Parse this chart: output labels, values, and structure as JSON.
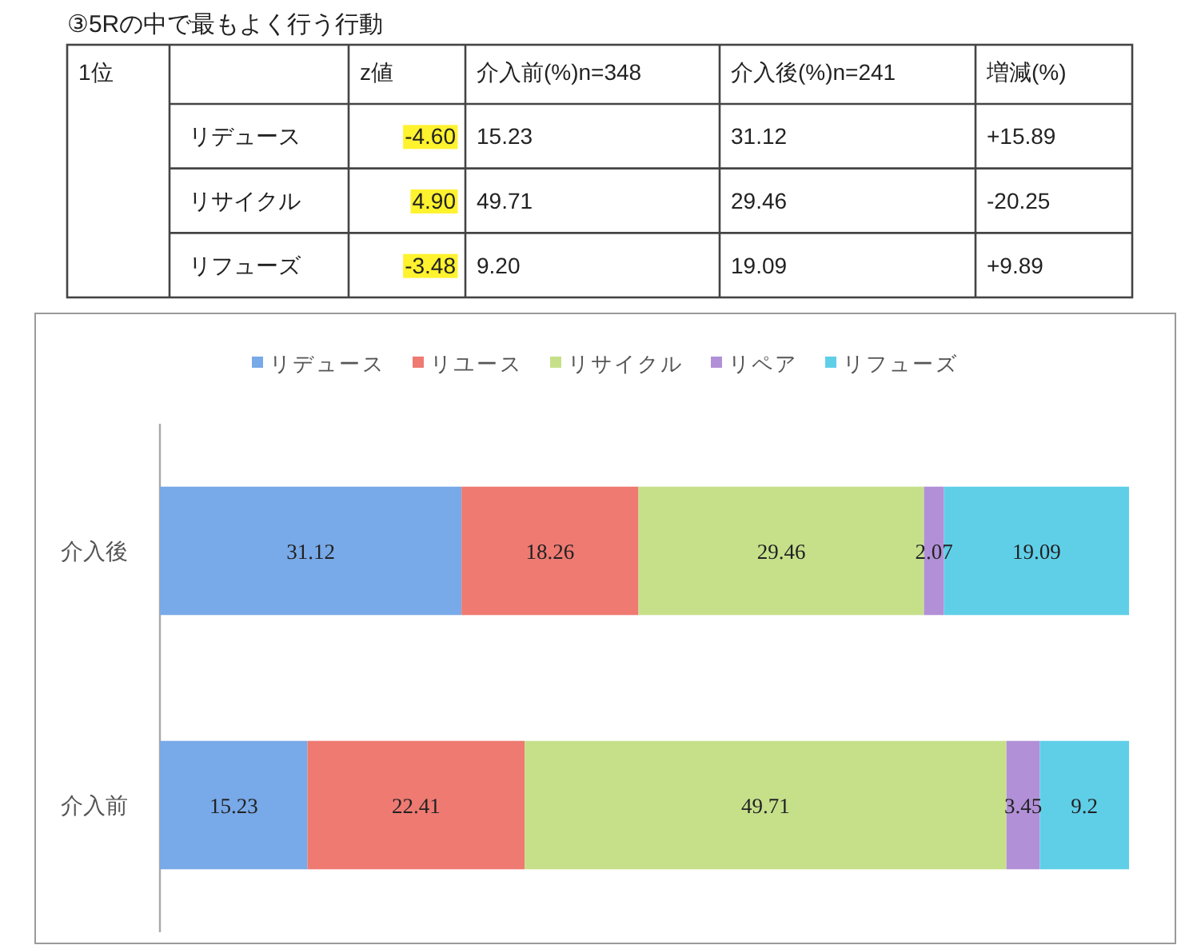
{
  "chart_data": [
    {
      "type": "other",
      "title": "③5Rの中で最もよく行う行動",
      "ylabel": "1位",
      "categories": [
        "z値",
        "介入前(%)n=348",
        "介入後(%)n=241",
        "増減(%)"
      ],
      "y_categories": [
        "リデュース",
        "リサイクル",
        "リフューズ"
      ],
      "cell_labels": [
        [
          "-4.60",
          "15.23",
          "31.12",
          "+15.89"
        ],
        [
          "4.90",
          "49.71",
          "29.46",
          "-20.25"
        ],
        [
          "-3.48",
          "9.20",
          "19.09",
          "+9.89"
        ]
      ],
      "colors": [
        [
          "#fff22e",
          null,
          null,
          null
        ],
        [
          "#fff22e",
          null,
          null,
          null
        ],
        [
          "#fff22e",
          null,
          null,
          null
        ]
      ]
    },
    {
      "type": "bar",
      "orientation": "horizontal",
      "stacked": true,
      "categories": [
        "介入後",
        "介入前"
      ],
      "series": [
        {
          "name": "リデュース",
          "color": "#78a9e8",
          "values": [
            31.12,
            15.23
          ]
        },
        {
          "name": "リユース",
          "color": "#ee7a72",
          "values": [
            18.26,
            22.41
          ]
        },
        {
          "name": "リサイクル",
          "color": "#c6e08a",
          "values": [
            29.46,
            49.71
          ]
        },
        {
          "name": "リペア",
          "color": "#b190d8",
          "values": [
            2.07,
            3.45
          ]
        },
        {
          "name": "リフューズ",
          "color": "#5fcfe8",
          "values": [
            19.09,
            9.2
          ]
        }
      ],
      "xlim": [
        0,
        100
      ],
      "data_labels": true,
      "legend": "top",
      "tick_labels": "y"
    }
  ]
}
